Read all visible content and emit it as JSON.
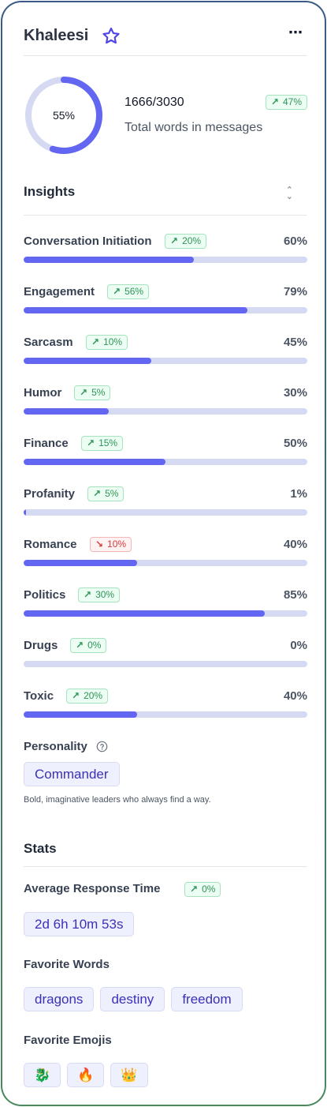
{
  "header": {
    "title": "Khaleesi",
    "more_label": "⋯"
  },
  "words": {
    "percent_label": "55%",
    "percent": 0.55,
    "count": "1666/3030",
    "subtitle": "Total words in messages",
    "trend": "47%",
    "trend_dir": "up"
  },
  "insights": {
    "title": "Insights",
    "items": [
      {
        "name": "Conversation Initiation",
        "trend": "20%",
        "dir": "up",
        "pct_label": "60%",
        "value": 60
      },
      {
        "name": "Engagement",
        "trend": "56%",
        "dir": "up",
        "pct_label": "79%",
        "value": 79
      },
      {
        "name": "Sarcasm",
        "trend": "10%",
        "dir": "up",
        "pct_label": "45%",
        "value": 45
      },
      {
        "name": "Humor",
        "trend": "5%",
        "dir": "up",
        "pct_label": "30%",
        "value": 30
      },
      {
        "name": "Finance",
        "trend": "15%",
        "dir": "up",
        "pct_label": "50%",
        "value": 50
      },
      {
        "name": "Profanity",
        "trend": "5%",
        "dir": "up",
        "pct_label": "1%",
        "value": 1
      },
      {
        "name": "Romance",
        "trend": "10%",
        "dir": "down",
        "pct_label": "40%",
        "value": 40
      },
      {
        "name": "Politics",
        "trend": "30%",
        "dir": "up",
        "pct_label": "85%",
        "value": 85
      },
      {
        "name": "Drugs",
        "trend": "0%",
        "dir": "up",
        "pct_label": "0%",
        "value": 0
      },
      {
        "name": "Toxic",
        "trend": "20%",
        "dir": "up",
        "pct_label": "40%",
        "value": 40
      }
    ]
  },
  "personality": {
    "label": "Personality",
    "type": "Commander",
    "description": "Bold, imaginative leaders who always find a way."
  },
  "stats": {
    "title": "Stats",
    "response_label": "Average Response Time",
    "response_trend": "0%",
    "response_value": "2d 6h 10m 53s",
    "words_label": "Favorite Words",
    "favorite_words": [
      "dragons",
      "destiny",
      "freedom"
    ],
    "emojis_label": "Favorite Emojis",
    "favorite_emojis": [
      "🐉",
      "🔥",
      "👑"
    ]
  },
  "colors": {
    "accent": "#6366f1",
    "track": "#d5daf2",
    "up": "#2f9458",
    "down": "#d43c3c",
    "chip_text": "#3b31b8"
  }
}
